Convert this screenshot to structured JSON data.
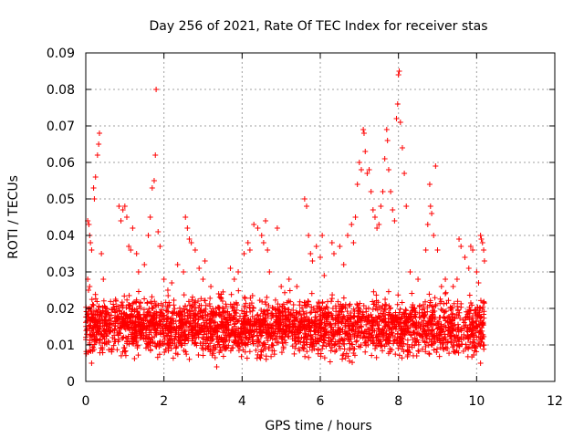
{
  "chart_data": {
    "type": "scatter",
    "title": "Day 256 of 2021, Rate Of TEC Index for receiver stas",
    "xlabel": "GPS time / hours",
    "ylabel": "ROTI / TECUs",
    "xlim": [
      0,
      12
    ],
    "ylim": [
      0,
      0.09
    ],
    "xticks": [
      "0",
      "2",
      "4",
      "6",
      "8",
      "10",
      "12"
    ],
    "yticks": [
      "0",
      "0.01",
      "0.02",
      "0.03",
      "0.04",
      "0.05",
      "0.06",
      "0.07",
      "0.08",
      "0.09"
    ],
    "grid": true,
    "marker": "+",
    "color": "#ff0000",
    "series": [
      {
        "name": "ROTI",
        "points": [
          [
            0.05,
            0.044
          ],
          [
            0.08,
            0.043
          ],
          [
            0.1,
            0.04
          ],
          [
            0.12,
            0.038
          ],
          [
            0.15,
            0.036
          ],
          [
            0.2,
            0.053
          ],
          [
            0.22,
            0.05
          ],
          [
            0.25,
            0.056
          ],
          [
            0.3,
            0.062
          ],
          [
            0.33,
            0.065
          ],
          [
            0.35,
            0.068
          ],
          [
            0.4,
            0.035
          ],
          [
            0.45,
            0.028
          ],
          [
            0.05,
            0.028
          ],
          [
            0.07,
            0.025
          ],
          [
            0.1,
            0.026
          ],
          [
            0.85,
            0.048
          ],
          [
            0.9,
            0.044
          ],
          [
            0.95,
            0.047
          ],
          [
            1.0,
            0.048
          ],
          [
            1.05,
            0.045
          ],
          [
            1.1,
            0.037
          ],
          [
            1.15,
            0.036
          ],
          [
            1.2,
            0.042
          ],
          [
            1.3,
            0.035
          ],
          [
            1.35,
            0.03
          ],
          [
            1.5,
            0.032
          ],
          [
            1.6,
            0.04
          ],
          [
            1.65,
            0.045
          ],
          [
            1.7,
            0.053
          ],
          [
            1.75,
            0.055
          ],
          [
            1.78,
            0.062
          ],
          [
            1.8,
            0.08
          ],
          [
            1.85,
            0.041
          ],
          [
            1.9,
            0.037
          ],
          [
            2.0,
            0.028
          ],
          [
            2.1,
            0.025
          ],
          [
            2.2,
            0.027
          ],
          [
            2.35,
            0.032
          ],
          [
            2.5,
            0.03
          ],
          [
            2.55,
            0.045
          ],
          [
            2.6,
            0.042
          ],
          [
            2.65,
            0.039
          ],
          [
            2.7,
            0.038
          ],
          [
            2.8,
            0.036
          ],
          [
            2.9,
            0.031
          ],
          [
            3.0,
            0.028
          ],
          [
            3.05,
            0.033
          ],
          [
            3.2,
            0.026
          ],
          [
            3.4,
            0.024
          ],
          [
            3.5,
            0.022
          ],
          [
            3.7,
            0.031
          ],
          [
            3.8,
            0.028
          ],
          [
            3.9,
            0.03
          ],
          [
            4.05,
            0.035
          ],
          [
            4.15,
            0.038
          ],
          [
            4.2,
            0.036
          ],
          [
            4.3,
            0.043
          ],
          [
            4.4,
            0.042
          ],
          [
            4.5,
            0.04
          ],
          [
            4.55,
            0.038
          ],
          [
            4.6,
            0.044
          ],
          [
            4.65,
            0.036
          ],
          [
            4.7,
            0.03
          ],
          [
            4.9,
            0.042
          ],
          [
            5.0,
            0.026
          ],
          [
            5.2,
            0.028
          ],
          [
            5.4,
            0.026
          ],
          [
            5.6,
            0.05
          ],
          [
            5.65,
            0.048
          ],
          [
            5.7,
            0.04
          ],
          [
            5.75,
            0.035
          ],
          [
            5.8,
            0.033
          ],
          [
            5.9,
            0.037
          ],
          [
            6.0,
            0.034
          ],
          [
            6.05,
            0.04
          ],
          [
            6.1,
            0.029
          ],
          [
            6.3,
            0.038
          ],
          [
            6.35,
            0.035
          ],
          [
            6.5,
            0.037
          ],
          [
            6.6,
            0.032
          ],
          [
            6.7,
            0.04
          ],
          [
            6.8,
            0.043
          ],
          [
            6.85,
            0.038
          ],
          [
            6.9,
            0.045
          ],
          [
            6.95,
            0.054
          ],
          [
            7.0,
            0.06
          ],
          [
            7.05,
            0.058
          ],
          [
            7.1,
            0.069
          ],
          [
            7.12,
            0.068
          ],
          [
            7.15,
            0.063
          ],
          [
            7.2,
            0.057
          ],
          [
            7.25,
            0.058
          ],
          [
            7.3,
            0.052
          ],
          [
            7.35,
            0.047
          ],
          [
            7.4,
            0.045
          ],
          [
            7.45,
            0.042
          ],
          [
            7.5,
            0.043
          ],
          [
            7.55,
            0.048
          ],
          [
            7.6,
            0.052
          ],
          [
            7.65,
            0.061
          ],
          [
            7.7,
            0.069
          ],
          [
            7.72,
            0.066
          ],
          [
            7.75,
            0.058
          ],
          [
            7.8,
            0.052
          ],
          [
            7.85,
            0.047
          ],
          [
            7.9,
            0.044
          ],
          [
            7.95,
            0.072
          ],
          [
            7.98,
            0.076
          ],
          [
            8.0,
            0.084
          ],
          [
            8.02,
            0.085
          ],
          [
            8.05,
            0.071
          ],
          [
            8.1,
            0.064
          ],
          [
            8.15,
            0.057
          ],
          [
            8.2,
            0.048
          ],
          [
            8.3,
            0.03
          ],
          [
            8.5,
            0.028
          ],
          [
            8.7,
            0.036
          ],
          [
            8.75,
            0.043
          ],
          [
            8.8,
            0.054
          ],
          [
            8.82,
            0.048
          ],
          [
            8.85,
            0.046
          ],
          [
            8.9,
            0.04
          ],
          [
            8.95,
            0.059
          ],
          [
            9.0,
            0.036
          ],
          [
            9.1,
            0.026
          ],
          [
            9.2,
            0.028
          ],
          [
            9.4,
            0.026
          ],
          [
            9.5,
            0.028
          ],
          [
            9.55,
            0.039
          ],
          [
            9.6,
            0.037
          ],
          [
            9.7,
            0.034
          ],
          [
            9.8,
            0.031
          ],
          [
            9.85,
            0.037
          ],
          [
            9.9,
            0.036
          ],
          [
            10.0,
            0.03
          ],
          [
            10.05,
            0.027
          ],
          [
            10.1,
            0.04
          ],
          [
            10.12,
            0.039
          ],
          [
            10.15,
            0.038
          ],
          [
            10.18,
            0.036
          ],
          [
            10.2,
            0.033
          ],
          [
            10.1,
            0.005
          ],
          [
            0.15,
            0.005
          ],
          [
            3.35,
            0.004
          ]
        ]
      }
    ],
    "dense_band": {
      "description": "dense scatter of points",
      "x_range": [
        0.0,
        10.2
      ],
      "y_range": [
        0.004,
        0.026
      ],
      "approx_count": 3000
    }
  }
}
